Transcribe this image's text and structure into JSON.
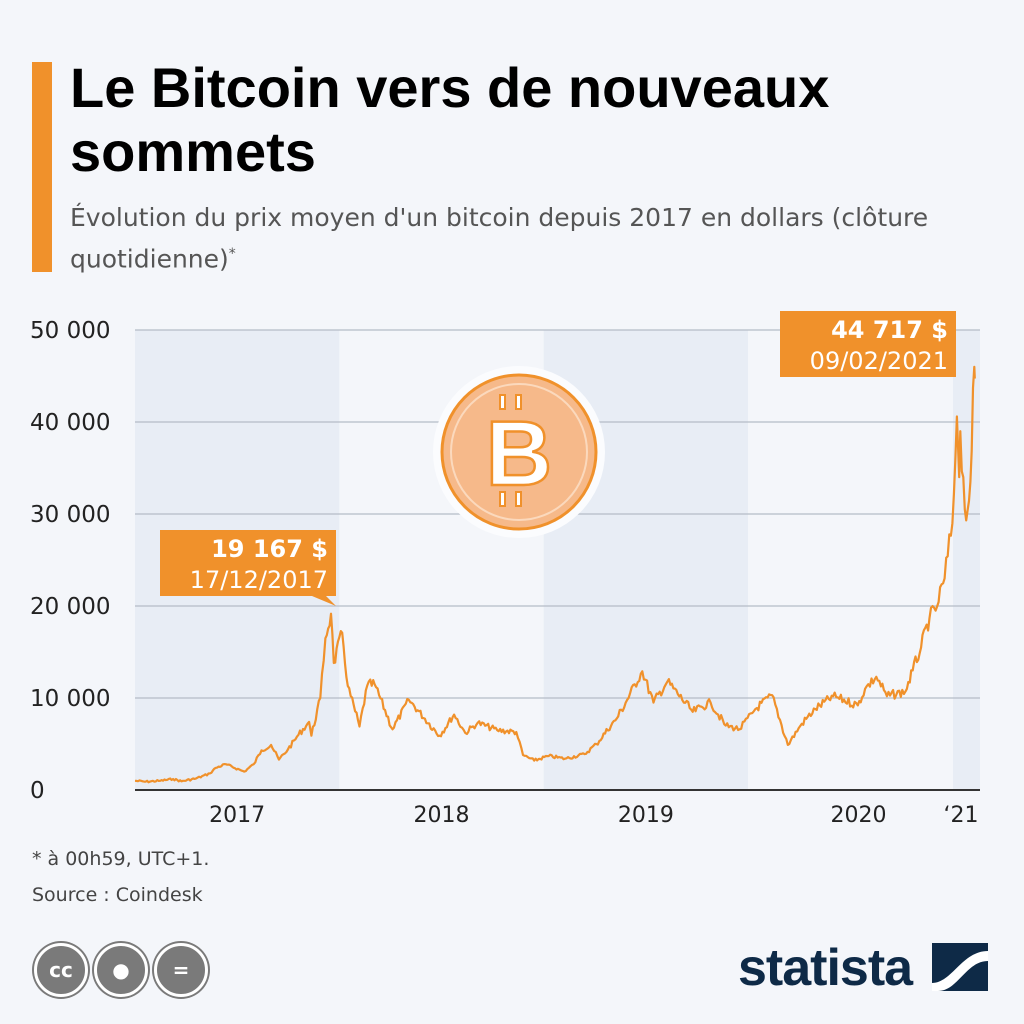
{
  "header": {
    "title": "Le Bitcoin vers de nouveaux sommets",
    "subtitle": "Évolution du prix moyen d'un bitcoin depuis 2017 en dollars (clôture quotidienne)",
    "subtitle_mark": "*"
  },
  "colors": {
    "accent": "#f0912b",
    "band": "#e8edf5",
    "background": "#f4f6fa",
    "logo": "#0e2a47"
  },
  "chart_data": {
    "type": "line",
    "ylim": [
      0,
      50000
    ],
    "yticks": [
      0,
      10000,
      20000,
      30000,
      40000,
      50000
    ],
    "ytick_labels": [
      "0",
      "10 000",
      "20 000",
      "30 000",
      "40 000",
      "50 000"
    ],
    "xlim": [
      "2017-01-01",
      "2021-02-12"
    ],
    "xtick_labels": [
      "2017",
      "2018",
      "2019",
      "2020",
      "‘21"
    ],
    "grid": true,
    "series": [
      {
        "points": [
          [
            "2017-01-01",
            1000
          ],
          [
            "2017-01-20",
            900
          ],
          [
            "2017-02-15",
            1000
          ],
          [
            "2017-03-10",
            1200
          ],
          [
            "2017-03-25",
            950
          ],
          [
            "2017-04-20",
            1250
          ],
          [
            "2017-05-15",
            1800
          ],
          [
            "2017-05-25",
            2400
          ],
          [
            "2017-06-12",
            2800
          ],
          [
            "2017-07-15",
            2000
          ],
          [
            "2017-08-01",
            2800
          ],
          [
            "2017-08-15",
            4300
          ],
          [
            "2017-09-01",
            4900
          ],
          [
            "2017-09-15",
            3300
          ],
          [
            "2017-10-01",
            4400
          ],
          [
            "2017-10-20",
            6000
          ],
          [
            "2017-11-08",
            7400
          ],
          [
            "2017-11-12",
            5900
          ],
          [
            "2017-11-28",
            10000
          ],
          [
            "2017-12-07",
            16500
          ],
          [
            "2017-12-17",
            19167
          ],
          [
            "2017-12-22",
            13800
          ],
          [
            "2018-01-06",
            17100
          ],
          [
            "2018-01-16",
            11300
          ],
          [
            "2018-02-06",
            6900
          ],
          [
            "2018-02-20",
            11400
          ],
          [
            "2018-03-05",
            11500
          ],
          [
            "2018-04-06",
            6600
          ],
          [
            "2018-05-05",
            9800
          ],
          [
            "2018-06-29",
            5900
          ],
          [
            "2018-07-25",
            8200
          ],
          [
            "2018-08-14",
            6200
          ],
          [
            "2018-09-05",
            7300
          ],
          [
            "2018-10-10",
            6500
          ],
          [
            "2018-11-13",
            6300
          ],
          [
            "2018-11-25",
            3800
          ],
          [
            "2018-12-15",
            3200
          ],
          [
            "2019-01-10",
            3700
          ],
          [
            "2019-02-08",
            3400
          ],
          [
            "2019-03-15",
            3900
          ],
          [
            "2019-04-05",
            5000
          ],
          [
            "2019-05-14",
            8000
          ],
          [
            "2019-06-26",
            12900
          ],
          [
            "2019-07-16",
            9500
          ],
          [
            "2019-08-10",
            11800
          ],
          [
            "2019-09-24",
            8500
          ],
          [
            "2019-10-26",
            9500
          ],
          [
            "2019-11-22",
            7000
          ],
          [
            "2019-12-17",
            6600
          ],
          [
            "2020-01-14",
            8800
          ],
          [
            "2020-02-13",
            10300
          ],
          [
            "2020-03-12",
            4900
          ],
          [
            "2020-04-06",
            7200
          ],
          [
            "2020-04-30",
            8800
          ],
          [
            "2020-06-01",
            10200
          ],
          [
            "2020-07-15",
            9200
          ],
          [
            "2020-07-28",
            11000
          ],
          [
            "2020-08-17",
            12300
          ],
          [
            "2020-09-05",
            10200
          ],
          [
            "2020-10-08",
            10700
          ],
          [
            "2020-10-21",
            13000
          ],
          [
            "2020-11-05",
            15500
          ],
          [
            "2020-11-20",
            18700
          ],
          [
            "2020-12-01",
            19500
          ],
          [
            "2020-12-17",
            23000
          ],
          [
            "2020-12-31",
            29000
          ],
          [
            "2021-01-08",
            40600
          ],
          [
            "2021-01-12",
            34000
          ],
          [
            "2021-01-14",
            39000
          ],
          [
            "2021-01-22",
            30500
          ],
          [
            "2021-01-27",
            30400
          ],
          [
            "2021-02-01",
            33500
          ],
          [
            "2021-02-08",
            46000
          ],
          [
            "2021-02-09",
            44717
          ]
        ]
      }
    ],
    "annotations": [
      {
        "value": "19 167 $",
        "date": "17/12/2017",
        "at": [
          "2017-12-17",
          19167
        ]
      },
      {
        "value": "44 717 $",
        "date": "09/02/2021",
        "at": [
          "2021-02-09",
          44717
        ]
      }
    ]
  },
  "footer": {
    "note": "* à 00h59, UTC+1.",
    "source": "Source : Coindesk",
    "license_icons": [
      "cc",
      "by",
      "="
    ],
    "logo": "statista"
  }
}
